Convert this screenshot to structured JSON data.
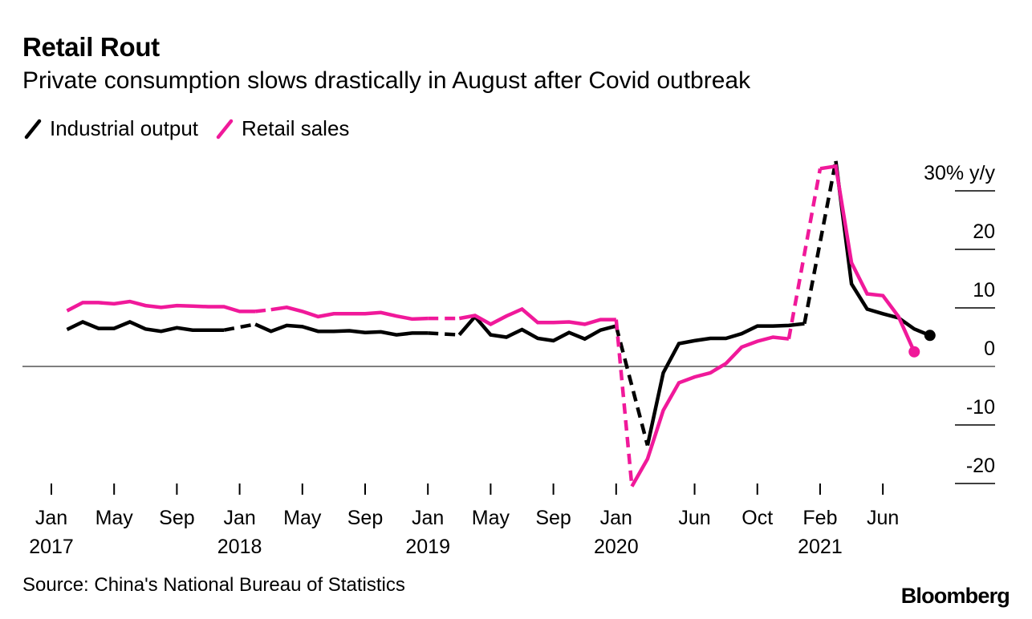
{
  "title": "Retail Rout",
  "subtitle": "Private consumption slows drastically in August after Covid outbreak",
  "source": "Source: China's National Bureau of Statistics",
  "brand": "Bloomberg",
  "colors": {
    "industrial": "#000000",
    "retail": "#f0199a",
    "zero_line": "#555555",
    "axis": "#000000"
  },
  "chart_data": {
    "type": "line",
    "title": "Retail Rout",
    "subtitle": "Private consumption slows drastically in August after Covid outbreak",
    "xlabel": "",
    "ylabel": "% y/y",
    "ylim": [
      -20,
      30
    ],
    "y_ticks": [
      {
        "value": 30,
        "label": "30% y/y"
      },
      {
        "value": 20,
        "label": "20"
      },
      {
        "value": 10,
        "label": "10"
      },
      {
        "value": 0,
        "label": "0"
      },
      {
        "value": -10,
        "label": "-10"
      },
      {
        "value": -20,
        "label": "-20"
      }
    ],
    "x_ticks": [
      {
        "index": 0,
        "label": "Jan",
        "year": "2017"
      },
      {
        "index": 4,
        "label": "May",
        "year": ""
      },
      {
        "index": 8,
        "label": "Sep",
        "year": ""
      },
      {
        "index": 12,
        "label": "Jan",
        "year": "2018"
      },
      {
        "index": 16,
        "label": "May",
        "year": ""
      },
      {
        "index": 20,
        "label": "Sep",
        "year": ""
      },
      {
        "index": 24,
        "label": "Jan",
        "year": "2019"
      },
      {
        "index": 28,
        "label": "May",
        "year": ""
      },
      {
        "index": 32,
        "label": "Sep",
        "year": ""
      },
      {
        "index": 36,
        "label": "Jan",
        "year": "2020"
      },
      {
        "index": 41,
        "label": "Jun",
        "year": ""
      },
      {
        "index": 45,
        "label": "Oct",
        "year": ""
      },
      {
        "index": 49,
        "label": "Feb",
        "year": "2021"
      },
      {
        "index": 53,
        "label": "Jun",
        "year": ""
      }
    ],
    "legend": [
      {
        "name": "Industrial output",
        "color": "#000000"
      },
      {
        "name": "Retail sales",
        "color": "#f0199a"
      }
    ],
    "series": [
      {
        "name": "Industrial output",
        "color": "#000000",
        "segments": [
          {
            "style": "solid",
            "points": [
              [
                1,
                6.3
              ],
              [
                2,
                7.6
              ],
              [
                3,
                6.5
              ],
              [
                4,
                6.5
              ],
              [
                5,
                7.6
              ],
              [
                6,
                6.4
              ],
              [
                7,
                6
              ],
              [
                8,
                6.6
              ],
              [
                9,
                6.2
              ],
              [
                10,
                6.2
              ],
              [
                11,
                6.2
              ]
            ]
          },
          {
            "style": "dashed",
            "points": [
              [
                11,
                6.2
              ],
              [
                13,
                7.2
              ]
            ]
          },
          {
            "style": "solid",
            "points": [
              [
                13,
                7.2
              ],
              [
                14,
                6
              ],
              [
                15,
                7
              ],
              [
                16,
                6.8
              ],
              [
                17,
                6
              ],
              [
                18,
                6
              ],
              [
                19,
                6.1
              ],
              [
                20,
                5.8
              ],
              [
                21,
                5.9
              ],
              [
                22,
                5.4
              ],
              [
                23,
                5.7
              ],
              [
                24,
                5.7
              ]
            ]
          },
          {
            "style": "dashed",
            "points": [
              [
                24,
                5.7
              ],
              [
                26,
                5.4
              ]
            ]
          },
          {
            "style": "solid",
            "points": [
              [
                26,
                5.4
              ],
              [
                27,
                8.5
              ],
              [
                28,
                5.4
              ],
              [
                29,
                5
              ],
              [
                30,
                6.3
              ],
              [
                31,
                4.8
              ],
              [
                32,
                4.4
              ],
              [
                33,
                5.8
              ],
              [
                34,
                4.7
              ],
              [
                35,
                6.2
              ],
              [
                36,
                6.9
              ]
            ]
          },
          {
            "style": "dashed",
            "points": [
              [
                36,
                6.9
              ],
              [
                38,
                -13.5
              ]
            ]
          },
          {
            "style": "solid",
            "points": [
              [
                38,
                -13.5
              ],
              [
                39,
                -1.1
              ],
              [
                40,
                3.9
              ],
              [
                41,
                4.4
              ],
              [
                42,
                4.8
              ],
              [
                43,
                4.8
              ],
              [
                44,
                5.6
              ],
              [
                45,
                6.9
              ],
              [
                46,
                6.9
              ],
              [
                47,
                7
              ],
              [
                48,
                7.3
              ]
            ]
          },
          {
            "style": "dashed",
            "points": [
              [
                48,
                7.3
              ],
              [
                50,
                35.1
              ]
            ]
          },
          {
            "style": "solid",
            "points": [
              [
                50,
                35.1
              ],
              [
                51,
                14.1
              ],
              [
                52,
                9.8
              ],
              [
                53,
                9
              ],
              [
                54,
                8.3
              ],
              [
                55,
                6.4
              ],
              [
                56,
                5.3
              ]
            ]
          }
        ],
        "end_marker": [
          56,
          5.3
        ]
      },
      {
        "name": "Retail sales",
        "color": "#f0199a",
        "segments": [
          {
            "style": "solid",
            "points": [
              [
                1,
                9.5
              ],
              [
                2,
                10.9
              ],
              [
                3,
                10.9
              ],
              [
                4,
                10.7
              ],
              [
                5,
                11.1
              ],
              [
                6,
                10.4
              ],
              [
                7,
                10.1
              ],
              [
                8,
                10.4
              ],
              [
                9,
                10.3
              ],
              [
                10,
                10.2
              ],
              [
                11,
                10.2
              ],
              [
                12,
                9.4
              ],
              [
                13,
                9.4
              ]
            ]
          },
          {
            "style": "dashed",
            "points": [
              [
                13,
                9.4
              ],
              [
                14,
                9.7
              ]
            ]
          },
          {
            "style": "solid",
            "points": [
              [
                14,
                9.7
              ],
              [
                15,
                10.1
              ],
              [
                16,
                9.4
              ],
              [
                17,
                8.5
              ],
              [
                18,
                9
              ],
              [
                19,
                9
              ],
              [
                20,
                9
              ],
              [
                21,
                9.2
              ],
              [
                22,
                8.6
              ],
              [
                23,
                8.1
              ],
              [
                24,
                8.2
              ]
            ]
          },
          {
            "style": "dashed",
            "points": [
              [
                24,
                8.2
              ],
              [
                26,
                8.2
              ]
            ]
          },
          {
            "style": "solid",
            "points": [
              [
                26,
                8.2
              ],
              [
                27,
                8.7
              ],
              [
                28,
                7.2
              ],
              [
                29,
                8.6
              ],
              [
                30,
                9.8
              ],
              [
                31,
                7.5
              ],
              [
                32,
                7.5
              ],
              [
                33,
                7.6
              ],
              [
                34,
                7.2
              ],
              [
                35,
                8
              ],
              [
                36,
                8
              ]
            ]
          },
          {
            "style": "dashed",
            "points": [
              [
                36,
                8
              ],
              [
                37,
                -20.5
              ]
            ]
          },
          {
            "style": "solid",
            "points": [
              [
                37,
                -20.5
              ],
              [
                38,
                -15.8
              ],
              [
                39,
                -7.5
              ],
              [
                40,
                -2.8
              ],
              [
                41,
                -1.8
              ],
              [
                42,
                -1.1
              ],
              [
                43,
                0.5
              ],
              [
                44,
                3.3
              ],
              [
                45,
                4.3
              ],
              [
                46,
                5
              ],
              [
                47,
                4.7
              ]
            ]
          },
          {
            "style": "dashed",
            "points": [
              [
                47,
                4.7
              ],
              [
                49,
                33.8
              ]
            ]
          },
          {
            "style": "solid",
            "points": [
              [
                49,
                33.8
              ],
              [
                50,
                34.2
              ],
              [
                51,
                17.7
              ],
              [
                52,
                12.4
              ],
              [
                53,
                12.1
              ],
              [
                54,
                8.5
              ],
              [
                55,
                2.5
              ]
            ]
          }
        ],
        "end_marker": [
          55,
          2.5
        ]
      }
    ]
  }
}
